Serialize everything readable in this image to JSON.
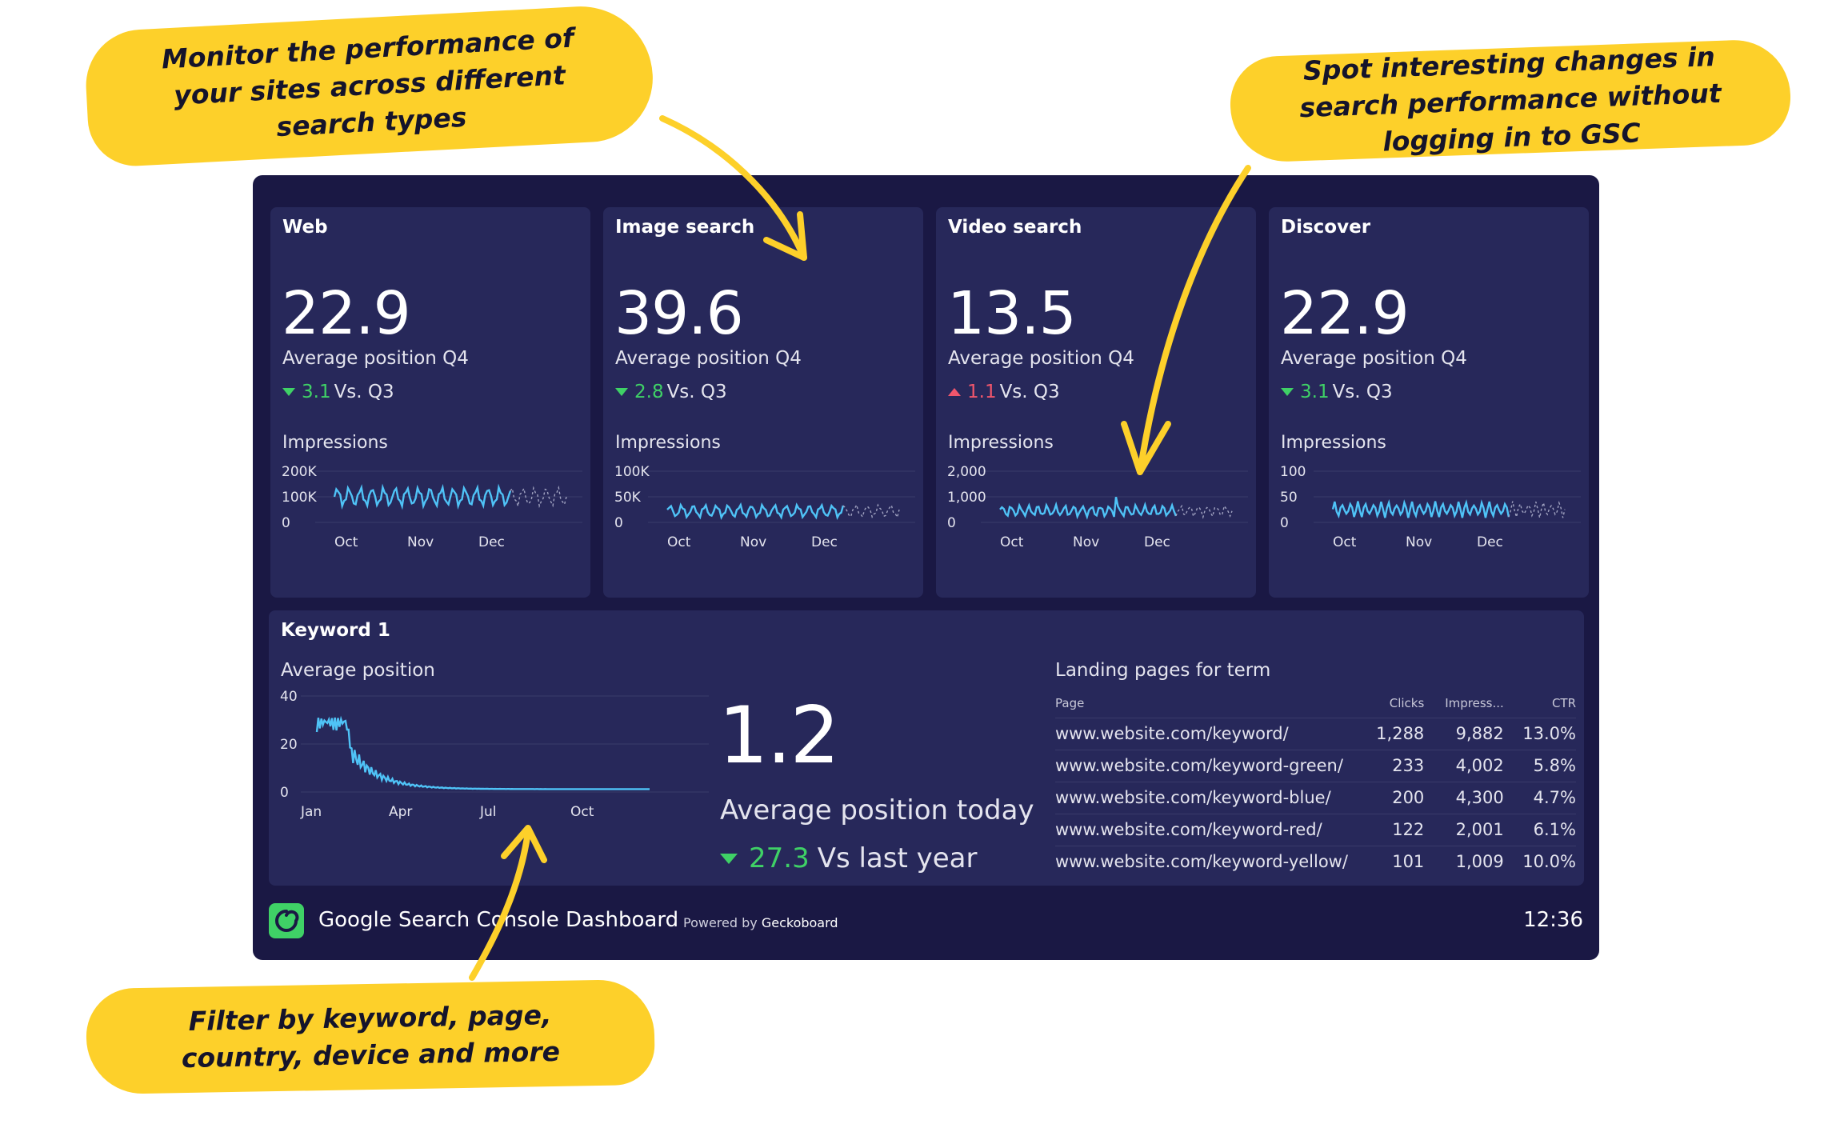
{
  "callouts": {
    "top_left": "Monitor the performance of your sites across different search types",
    "top_right": "Spot interesting changes in search performance without logging in to GSC",
    "bottom_left": "Filter by keyword, page, country, device and more"
  },
  "colors": {
    "background": "#1a1844",
    "panel": "#27285a",
    "line": "#4fc3f7",
    "good": "#3fd166",
    "bad": "#f0566c",
    "callout": "#fdd02a"
  },
  "cards": [
    {
      "title": "Web",
      "value": "22.9",
      "label": "Average position Q4",
      "delta": "3.1",
      "delta_label": "Vs. Q3",
      "direction": "down",
      "impressions_label": "Impressions",
      "y_ticks": [
        "200K",
        "100K",
        "0"
      ],
      "y_max": 200000,
      "x_ticks": [
        "Oct",
        "Nov",
        "Dec"
      ],
      "chart_data": {
        "type": "line",
        "base": 100000,
        "amp": 30000,
        "cycles": 20
      }
    },
    {
      "title": "Image search",
      "value": "39.6",
      "label": "Average position Q4",
      "delta": "2.8",
      "delta_label": "Vs. Q3",
      "direction": "down",
      "impressions_label": "Impressions",
      "y_ticks": [
        "100K",
        "50K",
        "0"
      ],
      "y_max": 100000,
      "x_ticks": [
        "Oct",
        "Nov",
        "Dec"
      ],
      "chart_data": {
        "type": "line",
        "base": 22000,
        "amp": 10000,
        "cycles": 20
      }
    },
    {
      "title": "Video search",
      "value": "13.5",
      "label": "Average position Q4",
      "delta": "1.1",
      "delta_label": "Vs. Q3",
      "direction": "up",
      "impressions_label": "Impressions",
      "y_ticks": [
        "2,000",
        "1,000",
        "0"
      ],
      "y_max": 2000,
      "x_ticks": [
        "Oct",
        "Nov",
        "Dec"
      ],
      "chart_data": {
        "type": "line",
        "base": 450,
        "amp": 180,
        "cycles": 26
      }
    },
    {
      "title": "Discover",
      "value": "22.9",
      "label": "Average position Q4",
      "delta": "3.1",
      "delta_label": "Vs. Q3",
      "direction": "down",
      "impressions_label": "Impressions",
      "y_ticks": [
        "100",
        "50",
        "0"
      ],
      "y_max": 100,
      "x_ticks": [
        "Oct",
        "Nov",
        "Dec"
      ],
      "chart_data": {
        "type": "line",
        "base": 25,
        "amp": 12,
        "cycles": 30
      }
    }
  ],
  "keyword": {
    "title": "Keyword 1",
    "chart_label": "Average position",
    "y_ticks": [
      "40",
      "20",
      "0"
    ],
    "x_ticks": [
      "Jan",
      "Apr",
      "Jul",
      "Oct"
    ],
    "chart_data": {
      "type": "line",
      "ylim": [
        0,
        40
      ]
    },
    "big_value": "1.2",
    "big_label": "Average position today",
    "delta": "27.3",
    "delta_label": "Vs last year"
  },
  "landing": {
    "title": "Landing pages for term",
    "columns": [
      "Page",
      "Clicks",
      "Impress...",
      "CTR"
    ],
    "rows": [
      [
        "www.website.com/keyword/",
        "1,288",
        "9,882",
        "13.0%"
      ],
      [
        "www.website.com/keyword-green/",
        "233",
        "4,002",
        "5.8%"
      ],
      [
        "www.website.com/keyword-blue/",
        "200",
        "4,300",
        "4.7%"
      ],
      [
        "www.website.com/keyword-red/",
        "122",
        "2,001",
        "6.1%"
      ],
      [
        "www.website.com/keyword-yellow/",
        "101",
        "1,009",
        "10.0%"
      ]
    ]
  },
  "footer": {
    "title": "Google Search Console Dashboard",
    "powered_prefix": "Powered by",
    "powered_brand": "Geckoboard",
    "time": "12:36",
    "logo_icon": "geckoboard-logo-icon"
  }
}
